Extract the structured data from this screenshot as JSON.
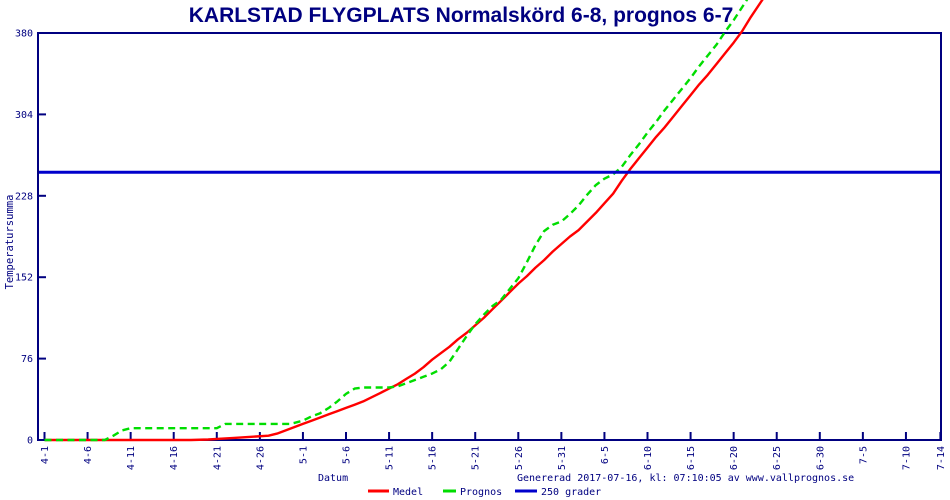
{
  "title": "KARLSTAD FLYGPLATS Normalskörd 6-8, prognos 6-7",
  "footer": {
    "generated": "Genererad 2017-07-16, kl: 07:10:05 av www.vallprognos.se"
  },
  "colors": {
    "frame": "#000080",
    "text": "#000080",
    "title": "#000080",
    "medel": "#ff0000",
    "prognos": "#00dd00",
    "line250": "#0000cc",
    "background": "#ffffff"
  },
  "chart_data": {
    "type": "line",
    "title": "KARLSTAD FLYGPLATS Normalskörd 6-8, prognos 6-7",
    "xlabel": "Datum",
    "ylabel": "Temperatursumma",
    "ylim": [
      0,
      380
    ],
    "yticks": [
      0,
      76,
      152,
      228,
      304,
      380
    ],
    "x_start_date": "4-1",
    "xticks": [
      {
        "label": "4-1",
        "day": 0
      },
      {
        "label": "4-6",
        "day": 5
      },
      {
        "label": "4-11",
        "day": 10
      },
      {
        "label": "4-16",
        "day": 15
      },
      {
        "label": "4-21",
        "day": 20
      },
      {
        "label": "4-26",
        "day": 25
      },
      {
        "label": "5-1",
        "day": 30
      },
      {
        "label": "5-6",
        "day": 35
      },
      {
        "label": "5-11",
        "day": 40
      },
      {
        "label": "5-16",
        "day": 45
      },
      {
        "label": "5-21",
        "day": 50
      },
      {
        "label": "5-26",
        "day": 55
      },
      {
        "label": "5-31",
        "day": 60
      },
      {
        "label": "6-5",
        "day": 65
      },
      {
        "label": "6-10",
        "day": 70
      },
      {
        "label": "6-15",
        "day": 75
      },
      {
        "label": "6-20",
        "day": 80
      },
      {
        "label": "6-25",
        "day": 85
      },
      {
        "label": "6-30",
        "day": 90
      },
      {
        "label": "7-5",
        "day": 95
      },
      {
        "label": "7-10",
        "day": 100
      },
      {
        "label": "7-14",
        "day": 104
      }
    ],
    "reference_line": {
      "label": "250 grader",
      "value": 250,
      "color": "#0000cc"
    },
    "series": [
      {
        "name": "Medel",
        "color": "#ff0000",
        "style": "solid",
        "points": [
          [
            0,
            0
          ],
          [
            5,
            0
          ],
          [
            10,
            0
          ],
          [
            14,
            0
          ],
          [
            17,
            0
          ],
          [
            19,
            0.5
          ],
          [
            20,
            1
          ],
          [
            22,
            2
          ],
          [
            24,
            3
          ],
          [
            26,
            4
          ],
          [
            27,
            6
          ],
          [
            28,
            9
          ],
          [
            29,
            12
          ],
          [
            30,
            15
          ],
          [
            31,
            18
          ],
          [
            32,
            21
          ],
          [
            33,
            24
          ],
          [
            34,
            27
          ],
          [
            35,
            30
          ],
          [
            36,
            33
          ],
          [
            37,
            36
          ],
          [
            38,
            40
          ],
          [
            39,
            44
          ],
          [
            40,
            48
          ],
          [
            41,
            52
          ],
          [
            42,
            57
          ],
          [
            43,
            62
          ],
          [
            44,
            68
          ],
          [
            45,
            75
          ],
          [
            46,
            81
          ],
          [
            47,
            87
          ],
          [
            48,
            94
          ],
          [
            49,
            100
          ],
          [
            50,
            107
          ],
          [
            51,
            114
          ],
          [
            52,
            122
          ],
          [
            53,
            130
          ],
          [
            54,
            138
          ],
          [
            55,
            146
          ],
          [
            56,
            153
          ],
          [
            57,
            161
          ],
          [
            58,
            168
          ],
          [
            59,
            176
          ],
          [
            60,
            183
          ],
          [
            61,
            190
          ],
          [
            62,
            196
          ],
          [
            63,
            204
          ],
          [
            64,
            212
          ],
          [
            65,
            221
          ],
          [
            66,
            230
          ],
          [
            67,
            242
          ],
          [
            68,
            253
          ],
          [
            69,
            263
          ],
          [
            70,
            273
          ],
          [
            71,
            283
          ],
          [
            72,
            292
          ],
          [
            73,
            302
          ],
          [
            74,
            312
          ],
          [
            75,
            322
          ],
          [
            76,
            332
          ],
          [
            77,
            341
          ],
          [
            78,
            351
          ],
          [
            79,
            361
          ],
          [
            80,
            371
          ],
          [
            81,
            382
          ],
          [
            82,
            395
          ],
          [
            83.5,
            413
          ]
        ]
      },
      {
        "name": "Prognos",
        "color": "#00dd00",
        "style": "dashed",
        "points": [
          [
            0,
            0
          ],
          [
            3,
            0
          ],
          [
            5,
            0
          ],
          [
            7,
            0
          ],
          [
            8,
            4
          ],
          [
            9,
            9
          ],
          [
            10,
            11
          ],
          [
            12,
            11
          ],
          [
            14,
            11
          ],
          [
            16,
            11
          ],
          [
            18,
            11
          ],
          [
            20,
            11
          ],
          [
            21,
            15
          ],
          [
            23,
            15
          ],
          [
            25,
            15
          ],
          [
            27,
            15
          ],
          [
            28.5,
            15
          ],
          [
            29,
            16
          ],
          [
            30,
            18
          ],
          [
            31,
            22
          ],
          [
            32,
            25
          ],
          [
            33,
            30
          ],
          [
            34,
            36
          ],
          [
            35,
            43
          ],
          [
            36,
            48
          ],
          [
            37,
            49
          ],
          [
            38,
            49
          ],
          [
            39,
            49
          ],
          [
            40,
            49
          ],
          [
            41,
            50
          ],
          [
            42,
            53
          ],
          [
            43,
            56
          ],
          [
            44,
            59
          ],
          [
            45,
            62
          ],
          [
            46,
            66
          ],
          [
            47,
            73
          ],
          [
            48,
            85
          ],
          [
            49,
            97
          ],
          [
            50,
            108
          ],
          [
            51,
            117
          ],
          [
            52,
            125
          ],
          [
            53,
            131
          ],
          [
            54,
            141
          ],
          [
            55,
            151
          ],
          [
            56,
            166
          ],
          [
            57,
            182
          ],
          [
            58,
            195
          ],
          [
            59,
            201
          ],
          [
            60,
            204
          ],
          [
            61,
            211
          ],
          [
            62,
            219
          ],
          [
            63,
            229
          ],
          [
            64,
            238
          ],
          [
            65,
            244
          ],
          [
            66,
            248
          ],
          [
            67,
            255
          ],
          [
            68,
            266
          ],
          [
            69,
            276
          ],
          [
            70,
            287
          ],
          [
            71,
            297
          ],
          [
            72,
            308
          ],
          [
            73,
            318
          ],
          [
            74,
            328
          ],
          [
            75,
            338
          ],
          [
            76,
            349
          ],
          [
            77,
            359
          ],
          [
            78,
            369
          ],
          [
            79,
            381
          ],
          [
            80,
            392
          ],
          [
            81.7,
            413
          ]
        ]
      }
    ],
    "legend": [
      {
        "label": "Medel",
        "color": "#ff0000",
        "style": "solid"
      },
      {
        "label": "Prognos",
        "color": "#00dd00",
        "style": "dashed"
      },
      {
        "label": "250 grader",
        "color": "#0000cc",
        "style": "solid"
      }
    ],
    "legend_position": "bottom",
    "grid": false
  }
}
